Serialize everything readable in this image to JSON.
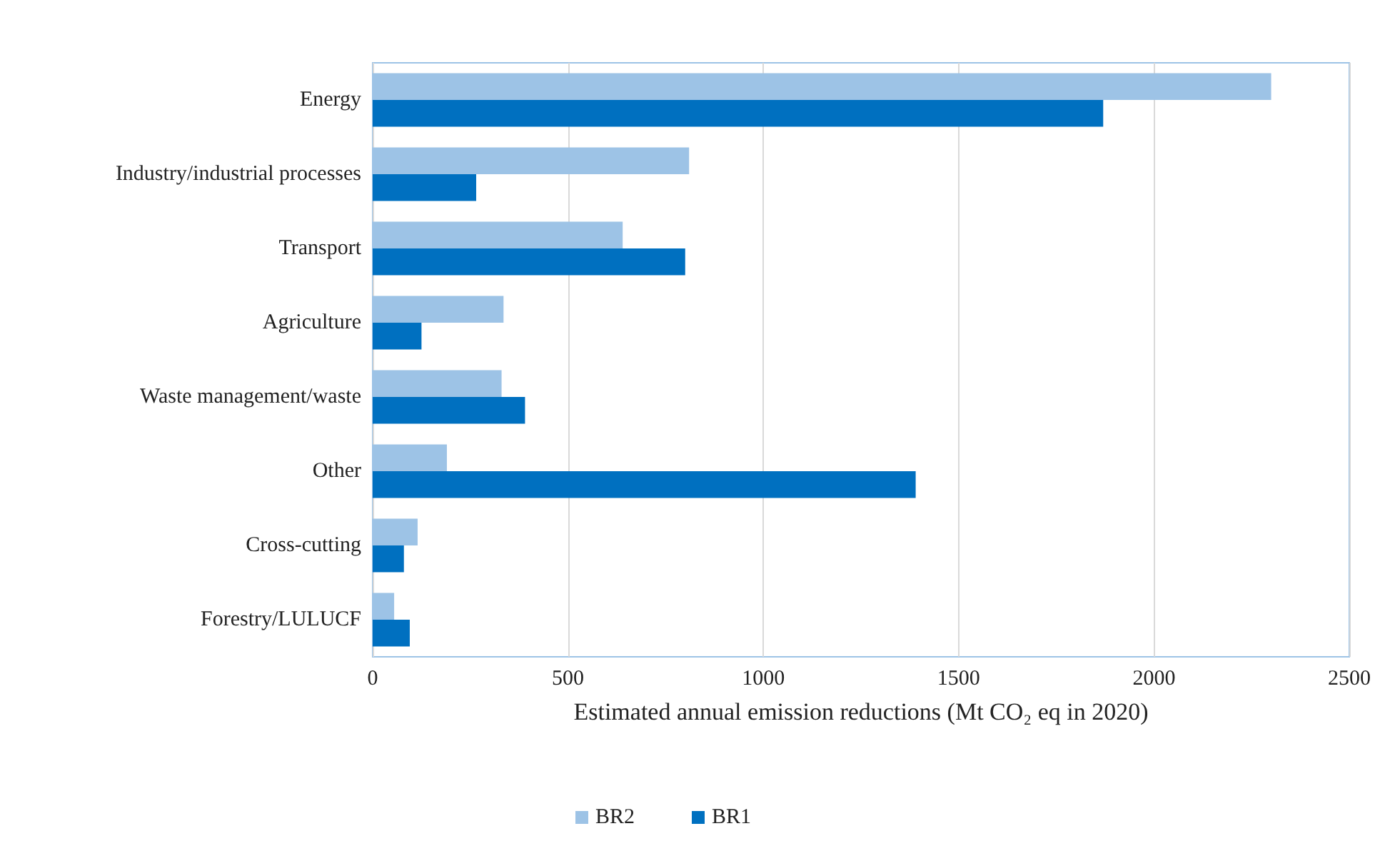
{
  "chart_data": {
    "type": "bar",
    "orientation": "horizontal",
    "xlabel": "Estimated annual emission reductions (Mt CO₂ eq in 2020)",
    "categories": [
      "Energy",
      "Industry/industrial processes",
      "Transport",
      "Agriculture",
      "Waste management/waste",
      "Other",
      "Cross-cutting",
      "Forestry/LULUCF"
    ],
    "series": [
      {
        "name": "BR2",
        "color": "#9dc3e6",
        "values": [
          2300,
          810,
          640,
          335,
          330,
          190,
          115,
          55
        ]
      },
      {
        "name": "BR1",
        "color": "#0070c0",
        "values": [
          1870,
          265,
          800,
          125,
          390,
          1390,
          80,
          95
        ]
      }
    ],
    "xlim": [
      0,
      2500
    ],
    "xticks": [
      0,
      500,
      1000,
      1500,
      2000,
      2500
    ],
    "grid": "x",
    "legend": "bottom"
  }
}
